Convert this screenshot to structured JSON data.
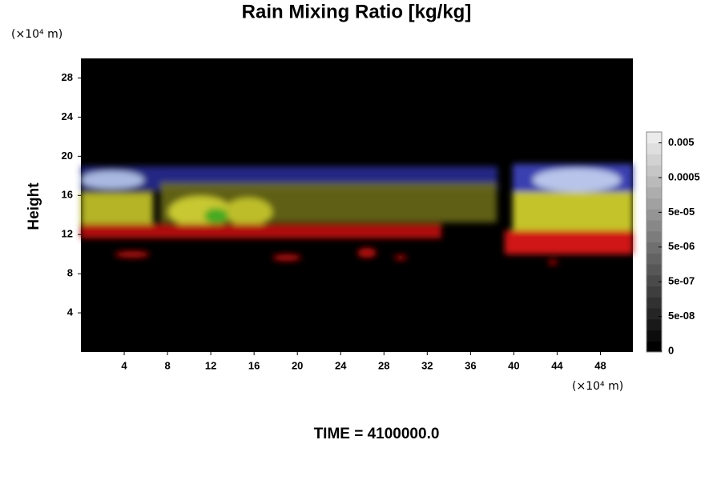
{
  "chart_data": {
    "type": "volume",
    "title": "Rain Mixing Ratio [kg/kg]",
    "x_unit": "(×10⁴ m)",
    "y_unit": "(×10⁴ m)",
    "ylabel": "Height",
    "xlim": [
      0,
      51
    ],
    "xticks": [
      4,
      8,
      12,
      16,
      20,
      24,
      28,
      32,
      36,
      40,
      44,
      48
    ],
    "ylim": [
      0,
      30
    ],
    "yticks": [
      4,
      8,
      12,
      16,
      20,
      24,
      28
    ],
    "colorbar": {
      "scale": "log",
      "ticks": [
        0,
        {
          "value": 5e-08,
          "label": "5e-08"
        },
        {
          "value": 5e-07,
          "label": "5e-07"
        },
        {
          "value": 5e-06,
          "label": "5e-06"
        },
        {
          "value": 5e-05,
          "label": "5e-05"
        },
        0.0005,
        0.005
      ]
    },
    "time_label": "TIME = 4100000.0"
  }
}
